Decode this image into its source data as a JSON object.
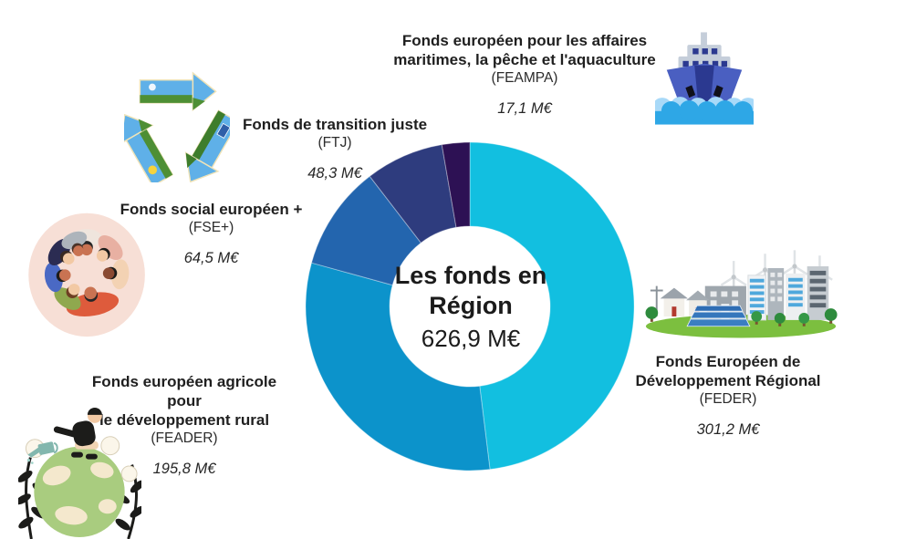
{
  "page": {
    "background": "#ffffff"
  },
  "center": {
    "line1": "Les fonds en",
    "line2": "Région",
    "total": "626,9 M€"
  },
  "chart_data": {
    "type": "pie",
    "subtype": "donut",
    "title": "Les fonds en Région",
    "center_total_label": "626,9 M€",
    "total_meur": 626.9,
    "unit": "M€",
    "start_angle_deg": 0,
    "direction": "clockwise",
    "legend_position": "around-chart",
    "segments": [
      {
        "id": "FEDER",
        "label": "Fonds Européen de Développement Régional",
        "value_meur": 301.2,
        "display_value": "301,2 M€",
        "color": "#12BFE0"
      },
      {
        "id": "FEADER",
        "label": "Fonds européen agricole pour le développement rural",
        "value_meur": 195.8,
        "display_value": "195,8 M€",
        "color": "#0C93CB"
      },
      {
        "id": "FSE+",
        "label": "Fonds social européen +",
        "value_meur": 64.5,
        "display_value": "64,5 M€",
        "color": "#2365AE"
      },
      {
        "id": "FTJ",
        "label": "Fonds de transition juste",
        "value_meur": 48.3,
        "display_value": "48,3 M€",
        "color": "#2E3C7E"
      },
      {
        "id": "FEAMPA",
        "label": "Fonds européen pour les affaires maritimes, la pêche et l'aquaculture",
        "value_meur": 17.1,
        "display_value": "17,1 M€",
        "color": "#2D1154"
      }
    ]
  },
  "labels": {
    "feampa": {
      "title_line1": "Fonds européen pour les affaires",
      "title_line2": "maritimes, la pêche et l'aquaculture",
      "acronym": "(FEAMPA)",
      "amount": "17,1 M€",
      "icon": "ship-icon"
    },
    "ftj": {
      "title_line1": "Fonds de transition juste",
      "acronym": "(FTJ)",
      "amount": "48,3 M€",
      "icon": "recycling-landscape-icon"
    },
    "fse": {
      "title_line1": "Fonds social européen +",
      "acronym": "(FSE+)",
      "amount": "64,5 M€",
      "icon": "group-hug-icon"
    },
    "feader": {
      "title_line1": "Fonds européen agricole pour",
      "title_line2": "le développement rural",
      "acronym": "(FEADER)",
      "amount": "195,8 M€",
      "icon": "globe-gardener-icon"
    },
    "feder": {
      "title_line1": "Fonds Européen de",
      "title_line2": "Développement Régional",
      "acronym": "(FEDER)",
      "amount": "301,2 M€",
      "icon": "eco-city-icon"
    }
  }
}
